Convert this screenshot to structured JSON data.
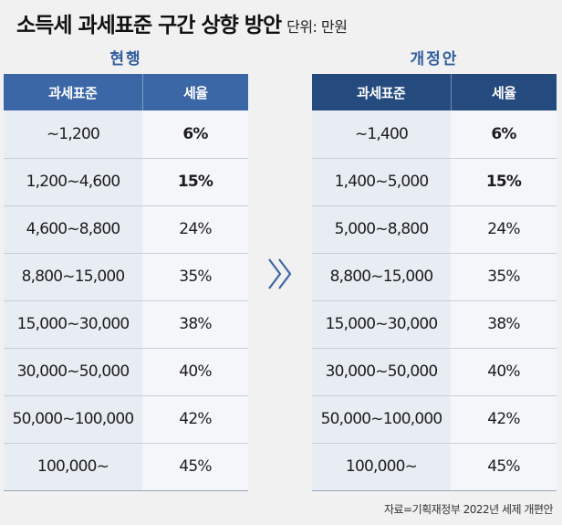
{
  "title": "소득세 과세표준 구간 상향 방안",
  "unit": "단위: 만원",
  "current": {
    "caption": "현행",
    "headers": [
      "과세표준",
      "세율"
    ],
    "rows": [
      {
        "range": "~1,200",
        "rate": "6%"
      },
      {
        "range": "1,200~4,600",
        "rate": "15%"
      },
      {
        "range": "4,600~8,800",
        "rate": "24%"
      },
      {
        "range": "8,800~15,000",
        "rate": "35%"
      },
      {
        "range": "15,000~30,000",
        "rate": "38%"
      },
      {
        "range": "30,000~50,000",
        "rate": "40%"
      },
      {
        "range": "50,000~100,000",
        "rate": "42%"
      },
      {
        "range": "100,000~",
        "rate": "45%"
      }
    ]
  },
  "proposed": {
    "caption": "개정안",
    "headers": [
      "과세표준",
      "세율"
    ],
    "rows": [
      {
        "range": "~1,400",
        "rate": "6%"
      },
      {
        "range": "1,400~5,000",
        "rate": "15%"
      },
      {
        "range": "5,000~8,800",
        "rate": "24%"
      },
      {
        "range": "8,800~15,000",
        "rate": "35%"
      },
      {
        "range": "15,000~30,000",
        "rate": "38%"
      },
      {
        "range": "30,000~50,000",
        "rate": "40%"
      },
      {
        "range": "50,000~100,000",
        "rate": "42%"
      },
      {
        "range": "100,000~",
        "rate": "45%"
      }
    ]
  },
  "source": "자료=기획재정부 2022년 세제 개편안",
  "colors": {
    "header_current": "#3b67a6",
    "header_proposed": "#254a7e",
    "caption": "#2f5d9e",
    "arrow": "#3b67a6"
  },
  "arrow_icon": "double-chevron-right-icon"
}
